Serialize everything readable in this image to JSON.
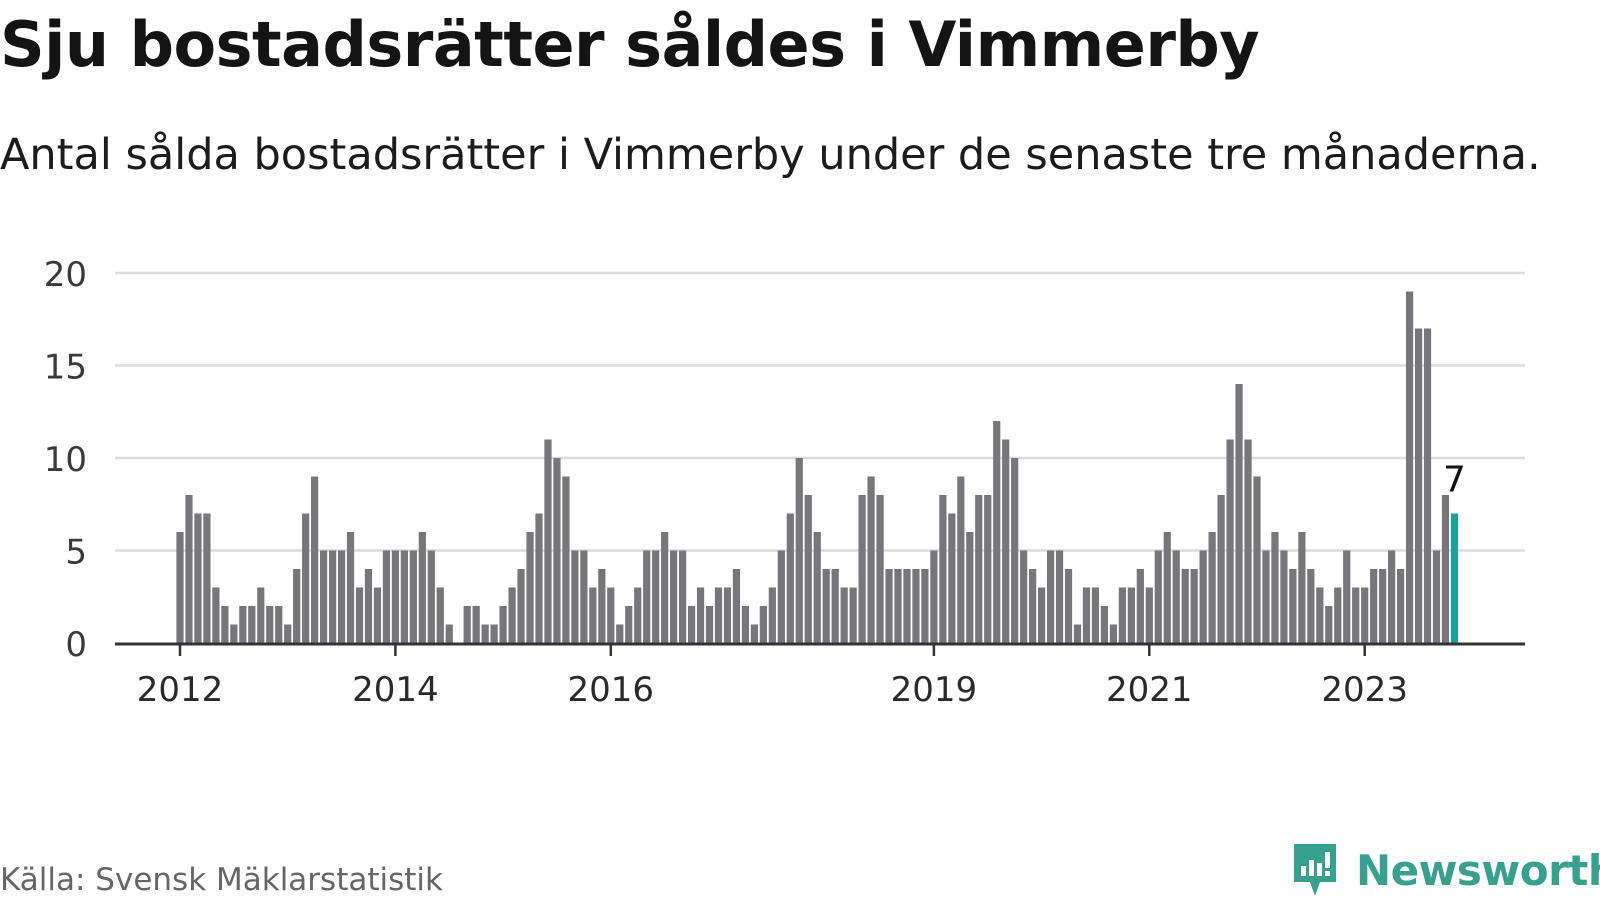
{
  "header": {
    "title": "Sju bostadsrätter såldes i Vimmerby",
    "subtitle": "Antal sålda bostadsrätter i Vimmerby under de senaste tre månaderna."
  },
  "footer": {
    "source": "Källa: Svensk Mäklarstatistik",
    "brand": "Newsworthy"
  },
  "colors": {
    "bar": "#77777b",
    "highlight": "#1aa39a",
    "grid": "#dcdcdc",
    "axis": "#333333",
    "brand": "#36a18f"
  },
  "chart_data": {
    "type": "bar",
    "title": "Sju bostadsrätter såldes i Vimmerby",
    "xlabel": "",
    "ylabel": "",
    "ylim": [
      0,
      20
    ],
    "yticks": [
      0,
      5,
      10,
      15,
      20
    ],
    "grid": true,
    "start_month": "2012-01",
    "values": [
      6,
      8,
      7,
      7,
      3,
      2,
      1,
      2,
      2,
      3,
      2,
      2,
      1,
      4,
      7,
      9,
      5,
      5,
      5,
      6,
      3,
      4,
      3,
      5,
      5,
      5,
      5,
      6,
      5,
      3,
      1,
      0,
      2,
      2,
      1,
      1,
      2,
      3,
      4,
      6,
      7,
      11,
      10,
      9,
      5,
      5,
      3,
      4,
      3,
      1,
      2,
      3,
      5,
      5,
      6,
      5,
      5,
      2,
      3,
      2,
      3,
      3,
      4,
      2,
      1,
      2,
      3,
      5,
      7,
      10,
      8,
      6,
      4,
      4,
      3,
      3,
      8,
      9,
      8,
      4,
      4,
      4,
      4,
      4,
      5,
      8,
      7,
      9,
      6,
      8,
      8,
      12,
      11,
      10,
      5,
      4,
      3,
      5,
      5,
      4,
      1,
      3,
      3,
      2,
      1,
      3,
      3,
      4,
      3,
      5,
      6,
      5,
      4,
      4,
      5,
      6,
      8,
      11,
      14,
      11,
      9,
      5,
      6,
      5,
      4,
      6,
      4,
      3,
      2,
      3,
      5,
      3,
      3,
      4,
      4,
      5,
      4,
      19,
      17,
      17,
      5,
      8,
      7
    ],
    "highlight_index": 142,
    "highlight_label": "7",
    "x_ticks": [
      {
        "label": "2012",
        "index": 0
      },
      {
        "label": "2014",
        "index": 24
      },
      {
        "label": "2016",
        "index": 48
      },
      {
        "label": "2019",
        "index": 84
      },
      {
        "label": "2021",
        "index": 108
      },
      {
        "label": "2023",
        "index": 132
      }
    ]
  }
}
